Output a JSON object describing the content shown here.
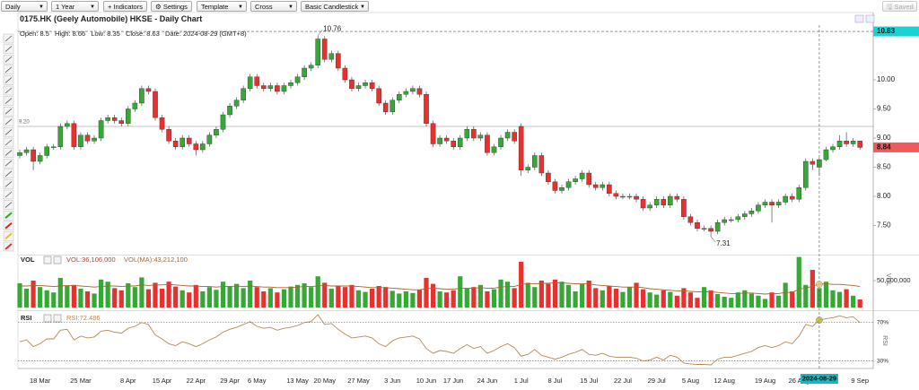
{
  "toolbar": {
    "interval": "Daily",
    "range": "1 Year",
    "indicators": "+ Indicators",
    "settings": "Settings",
    "template": "Template",
    "cursor": "Cross",
    "chart_style": "Basic Candlestick",
    "saved": "Saved"
  },
  "chart_data": {
    "type": "candlestick",
    "title": "0175.HK (Geely Automobile) HKSE - Daily Chart",
    "readout": {
      "open": "Open:",
      "high": "High:",
      "low": "Low:",
      "close": "Close:",
      "date_label": "Date:",
      "date": "2024-08-29 (GMT+8)"
    },
    "categories": [
      null,
      null,
      null,
      "18 Mar",
      null,
      null,
      null,
      null,
      null,
      "25 Mar",
      null,
      null,
      null,
      null,
      null,
      null,
      "8 Apr",
      null,
      null,
      null,
      null,
      "15 Apr",
      null,
      null,
      null,
      null,
      "22 Apr",
      null,
      null,
      null,
      null,
      "29 Apr",
      null,
      null,
      null,
      "6 May",
      null,
      null,
      null,
      null,
      null,
      "13 May",
      null,
      null,
      null,
      "20 May",
      null,
      null,
      null,
      null,
      "27 May",
      null,
      null,
      null,
      null,
      "3 Jun",
      null,
      null,
      null,
      null,
      "10 Jun",
      null,
      null,
      null,
      "17 Jun",
      null,
      null,
      null,
      null,
      "24 Jun",
      null,
      null,
      null,
      null,
      "1 Jul",
      null,
      null,
      null,
      null,
      "8 Jul",
      null,
      null,
      null,
      null,
      "15 Jul",
      null,
      null,
      null,
      null,
      "22 Jul",
      null,
      null,
      null,
      null,
      "29 Jul",
      null,
      null,
      null,
      null,
      "5 Aug",
      null,
      null,
      null,
      null,
      "12 Aug",
      null,
      null,
      null,
      null,
      null,
      "19 Aug",
      null,
      null,
      null,
      null,
      "26 Aug",
      null,
      null,
      null,
      null,
      null,
      null,
      null,
      null,
      "9 Sep"
    ],
    "open": [
      8.7,
      8.75,
      8.8,
      8.6,
      8.7,
      8.85,
      8.85,
      9.2,
      9.25,
      8.85,
      9.05,
      8.95,
      9.0,
      9.3,
      9.35,
      9.3,
      9.25,
      9.5,
      9.6,
      9.85,
      9.8,
      9.35,
      9.15,
      8.95,
      8.85,
      9.0,
      8.9,
      8.8,
      8.9,
      9.05,
      9.15,
      9.4,
      9.55,
      9.65,
      9.85,
      10.05,
      9.9,
      9.85,
      9.9,
      9.8,
      9.9,
      9.95,
      10.05,
      10.2,
      10.25,
      10.7,
      10.35,
      10.45,
      10.2,
      10.0,
      9.85,
      9.9,
      9.95,
      9.85,
      9.6,
      9.45,
      9.65,
      9.75,
      9.8,
      9.85,
      9.75,
      9.25,
      8.9,
      9.0,
      8.95,
      8.85,
      9.0,
      9.15,
      9.0,
      9.05,
      8.75,
      8.85,
      9.0,
      9.1,
      9.2,
      8.45,
      8.5,
      8.7,
      8.4,
      8.25,
      8.1,
      8.15,
      8.25,
      8.3,
      8.4,
      8.2,
      8.15,
      8.2,
      8.05,
      8.0,
      8.0,
      8.0,
      7.95,
      7.8,
      7.85,
      7.95,
      7.85,
      8.0,
      7.95,
      7.65,
      7.55,
      7.45,
      7.45,
      7.4,
      7.55,
      7.6,
      7.6,
      7.65,
      7.7,
      7.75,
      7.85,
      7.9,
      7.85,
      7.9,
      8.0,
      7.95,
      8.15,
      8.6,
      8.5,
      8.63,
      8.8,
      8.85,
      8.95,
      8.9,
      8.95
    ],
    "high": [
      8.8,
      8.85,
      8.85,
      8.75,
      8.9,
      8.9,
      9.25,
      9.3,
      9.3,
      9.1,
      9.1,
      9.05,
      9.35,
      9.4,
      9.4,
      9.35,
      9.55,
      9.65,
      9.9,
      9.9,
      9.85,
      9.4,
      9.2,
      9.0,
      9.05,
      9.05,
      8.95,
      8.95,
      9.1,
      9.2,
      9.45,
      9.6,
      9.7,
      9.9,
      10.1,
      10.1,
      9.95,
      9.95,
      9.95,
      9.95,
      10.0,
      10.1,
      10.25,
      10.3,
      10.76,
      10.75,
      10.5,
      10.5,
      10.25,
      10.05,
      9.95,
      10.0,
      10.0,
      9.9,
      9.65,
      9.7,
      9.8,
      9.85,
      9.9,
      9.9,
      9.8,
      9.3,
      9.05,
      9.05,
      9.0,
      9.05,
      9.2,
      9.2,
      9.1,
      9.1,
      8.9,
      9.05,
      9.15,
      9.15,
      9.25,
      8.55,
      8.75,
      8.75,
      8.45,
      8.3,
      8.2,
      8.3,
      8.35,
      8.45,
      8.45,
      8.25,
      8.25,
      8.25,
      8.1,
      8.05,
      8.05,
      8.05,
      8.0,
      7.9,
      8.0,
      8.0,
      8.05,
      8.05,
      8.0,
      7.7,
      7.6,
      7.5,
      7.5,
      7.6,
      7.65,
      7.65,
      7.7,
      7.75,
      7.8,
      7.9,
      7.95,
      7.95,
      7.95,
      8.05,
      8.05,
      8.2,
      8.65,
      8.65,
      8.66,
      8.85,
      8.9,
      9.05,
      9.1,
      9.0,
      8.95
    ],
    "low": [
      8.65,
      8.7,
      8.45,
      8.55,
      8.65,
      8.8,
      8.8,
      9.15,
      8.8,
      8.8,
      8.9,
      8.9,
      8.95,
      9.25,
      9.25,
      9.2,
      9.2,
      9.45,
      9.55,
      9.75,
      9.3,
      9.1,
      8.9,
      8.8,
      8.8,
      8.85,
      8.7,
      8.75,
      8.85,
      9.0,
      9.1,
      9.35,
      9.5,
      9.6,
      9.8,
      9.85,
      9.8,
      9.8,
      9.75,
      9.75,
      9.85,
      9.9,
      10.0,
      10.15,
      10.2,
      10.3,
      10.3,
      10.15,
      9.95,
      9.8,
      9.8,
      9.85,
      9.8,
      9.55,
      9.4,
      9.4,
      9.6,
      9.7,
      9.75,
      9.7,
      9.2,
      8.85,
      8.85,
      8.9,
      8.8,
      8.8,
      8.95,
      8.95,
      8.95,
      8.7,
      8.7,
      8.8,
      8.95,
      8.9,
      8.35,
      8.4,
      8.45,
      8.35,
      8.2,
      8.05,
      8.05,
      8.1,
      8.2,
      8.25,
      8.15,
      8.1,
      8.1,
      8.0,
      7.95,
      7.95,
      7.95,
      7.9,
      7.75,
      7.75,
      7.8,
      7.8,
      7.8,
      7.9,
      7.6,
      7.5,
      7.4,
      7.4,
      7.31,
      7.35,
      7.5,
      7.55,
      7.55,
      7.6,
      7.65,
      7.7,
      7.8,
      7.55,
      7.8,
      7.85,
      7.9,
      7.9,
      8.1,
      8.45,
      8.35,
      8.6,
      8.75,
      8.8,
      8.85,
      8.85,
      8.8
    ],
    "close": [
      8.75,
      8.8,
      8.6,
      8.7,
      8.85,
      8.85,
      9.2,
      9.25,
      8.85,
      9.05,
      8.95,
      9.0,
      9.3,
      9.35,
      9.3,
      9.25,
      9.5,
      9.6,
      9.85,
      9.8,
      9.35,
      9.15,
      8.95,
      8.85,
      9.0,
      8.9,
      8.8,
      8.9,
      9.05,
      9.15,
      9.4,
      9.55,
      9.65,
      9.85,
      10.05,
      9.9,
      9.85,
      9.9,
      9.8,
      9.9,
      9.95,
      10.05,
      10.2,
      10.25,
      10.7,
      10.35,
      10.45,
      10.2,
      10.0,
      9.85,
      9.9,
      9.95,
      9.85,
      9.6,
      9.45,
      9.65,
      9.75,
      9.8,
      9.85,
      9.75,
      9.25,
      8.9,
      9.0,
      8.95,
      8.85,
      9.0,
      9.15,
      9.0,
      9.05,
      8.75,
      8.85,
      9.0,
      9.1,
      8.95,
      8.45,
      8.5,
      8.7,
      8.4,
      8.25,
      8.1,
      8.15,
      8.25,
      8.3,
      8.4,
      8.2,
      8.15,
      8.2,
      8.05,
      8.0,
      8.0,
      8.0,
      7.95,
      7.8,
      7.85,
      7.95,
      7.85,
      8.0,
      7.95,
      7.65,
      7.55,
      7.45,
      7.45,
      7.4,
      7.55,
      7.6,
      7.6,
      7.65,
      7.7,
      7.75,
      7.85,
      7.9,
      7.85,
      7.9,
      8.0,
      7.95,
      8.15,
      8.6,
      8.55,
      8.63,
      8.8,
      8.85,
      8.95,
      8.9,
      8.95,
      8.84
    ],
    "up_color": "#35a835",
    "down_color": "#e8302e",
    "ylim": [
      7,
      11
    ],
    "yticks": [
      {
        "value": 7.5,
        "label": "7.50"
      },
      {
        "value": 8,
        "label": "8.00"
      },
      {
        "value": 8.5,
        "label": "8.50"
      },
      {
        "value": 9,
        "label": "9.00"
      },
      {
        "value": 9.5,
        "label": "9.50"
      },
      {
        "value": 10,
        "label": "10.00"
      }
    ],
    "reference_line": {
      "value": 9.2,
      "label": "9.20"
    },
    "crosshair": {
      "price": 10.83,
      "date": "2024-08-29"
    },
    "volume": {
      "name": "VOL",
      "readout": "VOL:36,106,000",
      "ma_readout": "VOL(MA):43,212,100",
      "ma_color": "#a5682a",
      "ylim": [
        0,
        95000000
      ],
      "yticks": [
        {
          "value": 50000000,
          "label": "50,000,000"
        }
      ],
      "values": [
        45000000.0,
        35000000.0,
        50000000.0,
        38000000.0,
        32000000.0,
        28000000.0,
        55000000.0,
        40000000.0,
        42000000.0,
        35000000.0,
        30000000.0,
        26000000.0,
        52000000.0,
        48000000.0,
        36000000.0,
        32000000.0,
        45000000.0,
        38000000.0,
        56000000.0,
        34000000.0,
        46000000.0,
        35000000.0,
        48000000.0,
        39000000.0,
        32000000.0,
        28000000.0,
        42000000.0,
        30000000.0,
        38000000.0,
        33000000.0,
        48000000.0,
        40000000.0,
        44000000.0,
        36000000.0,
        50000000.0,
        38000000.0,
        30000000.0,
        36000000.0,
        28000000.0,
        34000000.0,
        39000000.0,
        42000000.0,
        45000000.0,
        38000000.0,
        58000000.0,
        46000000.0,
        35000000.0,
        40000000.0,
        38000000.0,
        42000000.0,
        32000000.0,
        29000000.0,
        35000000.0,
        40000000.0,
        38000000.0,
        31000000.0,
        26000000.0,
        30000000.0,
        27000000.0,
        33000000.0,
        55000000.0,
        44000000.0,
        30000000.0,
        28000000.0,
        32000000.0,
        58000000.0,
        35000000.0,
        38000000.0,
        42000000.0,
        30000000.0,
        34000000.0,
        52000000.0,
        48000000.0,
        36000000.0,
        85000000.0,
        46000000.0,
        38000000.0,
        50000000.0,
        44000000.0,
        52000000.0,
        48000000.0,
        42000000.0,
        30000000.0,
        44000000.0,
        50000000.0,
        36000000.0,
        32000000.0,
        40000000.0,
        35000000.0,
        29000000.0,
        38000000.0,
        46000000.0,
        34000000.0,
        28000000.0,
        24000000.0,
        32000000.0,
        29000000.0,
        22000000.0,
        36000000.0,
        28000000.0,
        18000000.0,
        38000000.0,
        32000000.0,
        25000000.0,
        20000000.0,
        18000000.0,
        28000000.0,
        32000000.0,
        26000000.0,
        22000000.0,
        16000000.0,
        28000000.0,
        22000000.0,
        46000000.0,
        30000000.0,
        94000000.0,
        42000000.0,
        70000000.0,
        36106000.0,
        48000000.0,
        32000000.0,
        29000000.0,
        34000000.0,
        22000000.0,
        15000000.0
      ],
      "ma": [
        40000000.0,
        40000000.0,
        41000000.0,
        41000000.0,
        40000000.0,
        39000000.0,
        40000000.0,
        41000000.0,
        41000000.0,
        40000000.0,
        39000000.0,
        38000000.0,
        39000000.0,
        40000000.0,
        40000000.0,
        39000000.0,
        40000000.0,
        40000000.0,
        42000000.0,
        41000000.0,
        42000000.0,
        42000000.0,
        43000000.0,
        42000000.0,
        41000000.0,
        40000000.0,
        40000000.0,
        39000000.0,
        39000000.0,
        38000000.0,
        39000000.0,
        39000000.0,
        40000000.0,
        39000000.0,
        40000000.0,
        39000000.0,
        38000000.0,
        38000000.0,
        37000000.0,
        37000000.0,
        37000000.0,
        38000000.0,
        39000000.0,
        39000000.0,
        40000000.0,
        41000000.0,
        40000000.0,
        40000000.0,
        40000000.0,
        40000000.0,
        39000000.0,
        38000000.0,
        37000000.0,
        37000000.0,
        37000000.0,
        36000000.0,
        35000000.0,
        34000000.0,
        33000000.0,
        33000000.0,
        35000000.0,
        36000000.0,
        35000000.0,
        34000000.0,
        34000000.0,
        36000000.0,
        36000000.0,
        36000000.0,
        37000000.0,
        36000000.0,
        36000000.0,
        38000000.0,
        39000000.0,
        39000000.0,
        43000000.0,
        44000000.0,
        44000000.0,
        45000000.0,
        45000000.0,
        46000000.0,
        46000000.0,
        45000000.0,
        44000000.0,
        44000000.0,
        44000000.0,
        42000000.0,
        41000000.0,
        40000000.0,
        39000000.0,
        38000000.0,
        38000000.0,
        38000000.0,
        37000000.0,
        35000000.0,
        34000000.0,
        33000000.0,
        32000000.0,
        31000000.0,
        31000000.0,
        30000000.0,
        29000000.0,
        29000000.0,
        29000000.0,
        28000000.0,
        27000000.0,
        26000000.0,
        26000000.0,
        27000000.0,
        27000000.0,
        26000000.0,
        25000000.0,
        26000000.0,
        26000000.0,
        28000000.0,
        28000000.0,
        34000000.0,
        36000000.0,
        40000000.0,
        43212100.0,
        44000000.0,
        43000000.0,
        43000000.0,
        42000000.0,
        41000000.0,
        39000000.0
      ]
    },
    "rsi": {
      "name": "RSI",
      "readout": "RSI:72.486",
      "color": "#b58a55",
      "ylim": [
        26,
        80
      ],
      "yticks": [
        {
          "value": 30,
          "label": "30%"
        },
        {
          "value": 70,
          "label": "70%"
        }
      ],
      "values": [
        50,
        52,
        45,
        48,
        53,
        53,
        62,
        63,
        52,
        56,
        54,
        55,
        61,
        62,
        60,
        59,
        64,
        66,
        70,
        68,
        57,
        53,
        48,
        46,
        50,
        48,
        45,
        48,
        52,
        55,
        60,
        63,
        65,
        68,
        71,
        66,
        64,
        65,
        62,
        64,
        65,
        67,
        70,
        71,
        78,
        68,
        69,
        63,
        58,
        54,
        55,
        56,
        54,
        48,
        45,
        51,
        54,
        55,
        56,
        53,
        43,
        38,
        41,
        40,
        38,
        43,
        47,
        43,
        45,
        38,
        41,
        45,
        48,
        44,
        35,
        37,
        42,
        36,
        34,
        32,
        34,
        37,
        39,
        42,
        37,
        36,
        38,
        35,
        34,
        34,
        34,
        33,
        30,
        31,
        34,
        31,
        36,
        34,
        28,
        27,
        26.5,
        26.5,
        26,
        32,
        34,
        34,
        36,
        38,
        40,
        44,
        46,
        44,
        46,
        50,
        48,
        56,
        68,
        66,
        72.486,
        74,
        75,
        77,
        75,
        76,
        70
      ]
    }
  }
}
